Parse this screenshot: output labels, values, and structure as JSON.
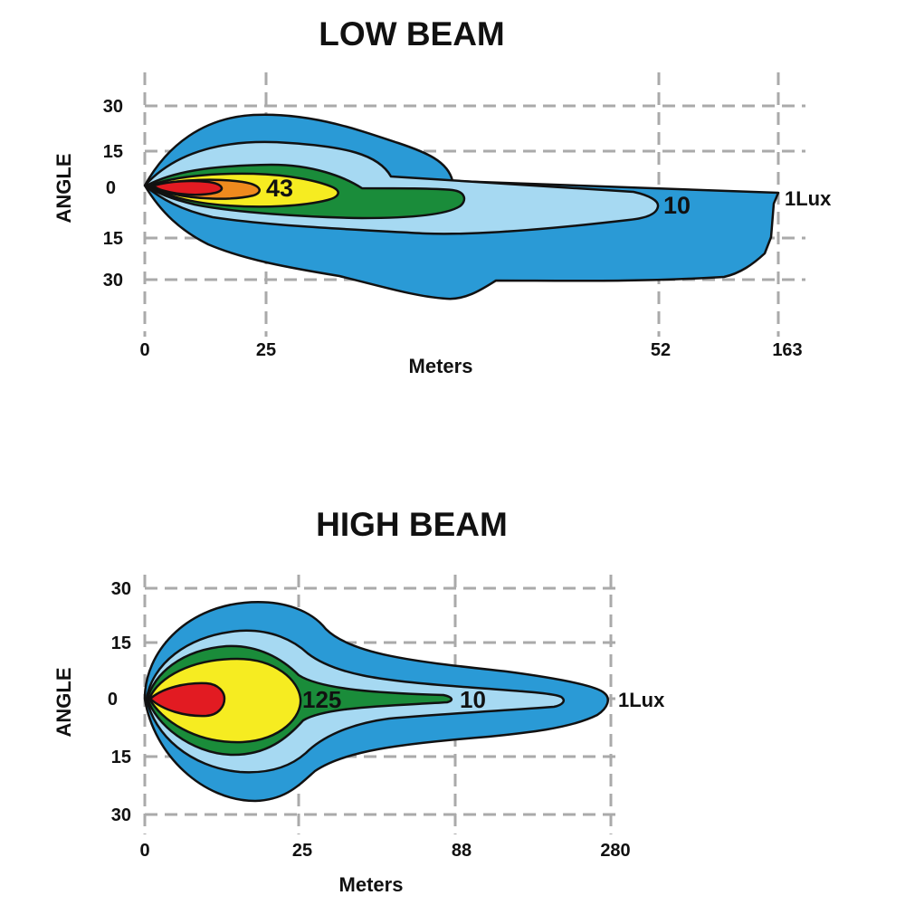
{
  "chart_data": [
    {
      "type": "area",
      "title": "LOW BEAM",
      "xlabel": "Meters",
      "ylabel": "ANGLE",
      "x_ticks": [
        "0",
        "25",
        "52",
        "163"
      ],
      "y_ticks": [
        "30",
        "15",
        "0",
        "15",
        "30"
      ],
      "grid": true,
      "annotations": [
        {
          "text": "43",
          "x": 25,
          "y": 0
        },
        {
          "text": "10",
          "x": 52,
          "y": -3
        },
        {
          "text": "1Lux",
          "x": 163,
          "y": -3
        }
      ],
      "colors": {
        "lux_1": "#2a9ad6",
        "lux_5": "#a6d9f2",
        "lux_10": "#1a8c3a",
        "lux_43": "#f6ec21",
        "lux_orange": "#ef8a1e",
        "lux_max": "#e21b22"
      }
    },
    {
      "type": "area",
      "title": "HIGH BEAM",
      "xlabel": "Meters",
      "ylabel": "ANGLE",
      "x_ticks": [
        "0",
        "25",
        "88",
        "280"
      ],
      "y_ticks": [
        "30",
        "15",
        "0",
        "15",
        "30"
      ],
      "grid": true,
      "annotations": [
        {
          "text": "125",
          "x": 25,
          "y": 0
        },
        {
          "text": "10",
          "x": 88,
          "y": 0
        },
        {
          "text": "1Lux",
          "x": 280,
          "y": 0
        }
      ],
      "colors": {
        "lux_1": "#2a9ad6",
        "lux_5": "#a6d9f2",
        "lux_10": "#1a8c3a",
        "lux_125": "#f6ec21",
        "lux_max": "#e21b22"
      }
    }
  ]
}
